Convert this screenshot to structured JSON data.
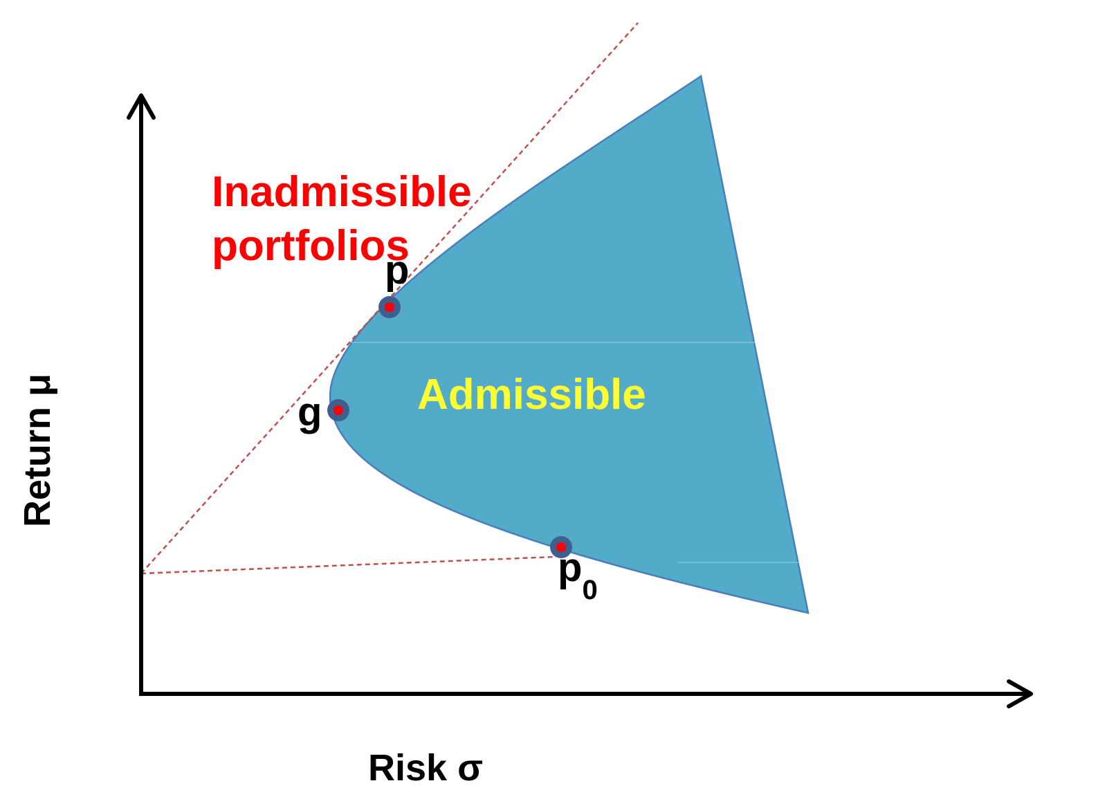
{
  "axes": {
    "x_label": "Risk σ",
    "y_label": "Return μ"
  },
  "regions": {
    "inadmissible_line1": "Inadmissible",
    "inadmissible_line2": "portfolios",
    "admissible": "Admissible"
  },
  "points": {
    "p": "p",
    "g": "g",
    "p0_base": "p",
    "p0_sub": "0"
  },
  "colors": {
    "region_fill": "#52abc8",
    "region_stroke": "#4a7ebb",
    "inadmissible_text": "#ff0000",
    "admissible_text": "#ffff33",
    "tangent_line": "#c0504d",
    "point_outer": "#3f5f8f",
    "point_inner": "#ff0000",
    "axis": "#000000"
  }
}
